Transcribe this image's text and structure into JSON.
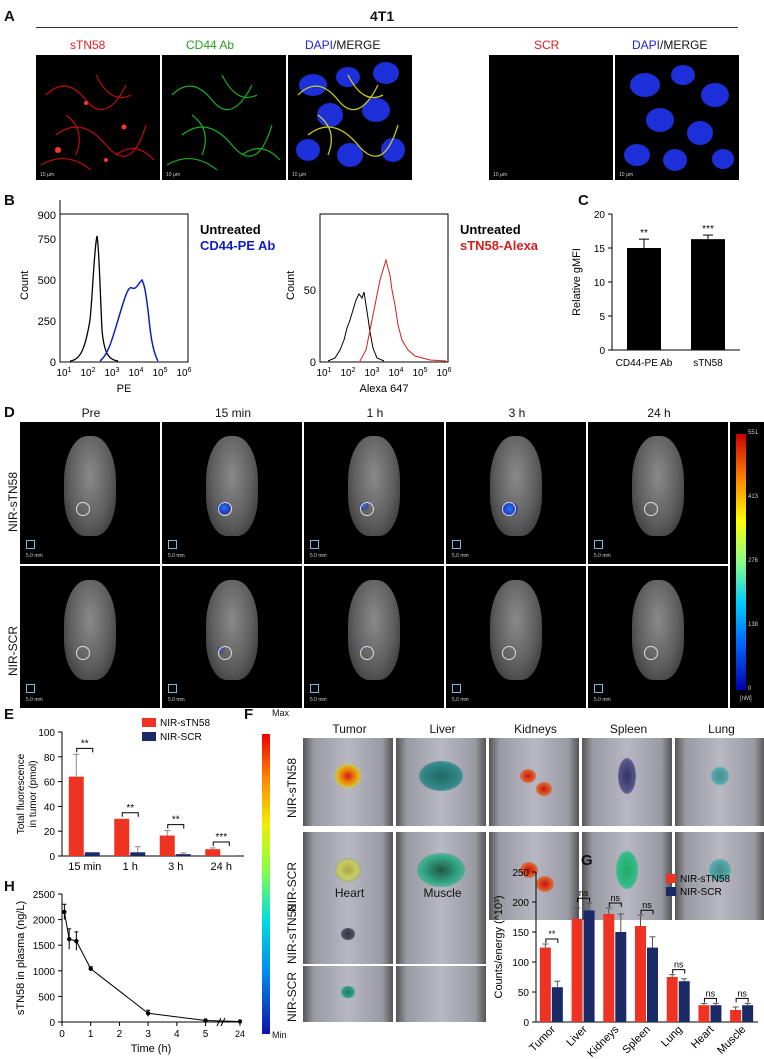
{
  "panels": {
    "A": "A",
    "B": "B",
    "C": "C",
    "D": "D",
    "E": "E",
    "F": "F",
    "G": "G",
    "H": "H"
  },
  "panelA": {
    "cell_line": "4T1",
    "labels": {
      "stn58": "sTN58",
      "cd44": "CD44 Ab",
      "dapi": "DAPI",
      "merge": "/MERGE",
      "scr": "SCR",
      "dapi2": "DAPI",
      "merge2": "/MERGE"
    },
    "scale": "10 µm",
    "colors": {
      "red": "#e02020",
      "green": "#22c022",
      "blue": "#2020e0"
    }
  },
  "panelB": {
    "left": {
      "legend1": "Untreated",
      "legend2": "CD44-PE Ab",
      "xlabel": "PE",
      "ylabel": "Count",
      "yticks": [
        "0",
        "250",
        "500",
        "750",
        "900"
      ],
      "xticks": [
        "10",
        "10",
        "10",
        "10",
        "10",
        "10"
      ],
      "xexp": [
        "1",
        "2",
        "3",
        "4",
        "5",
        "6"
      ]
    },
    "right": {
      "legend1": "Untreated",
      "legend2": "sTN58-Alexa",
      "xlabel": "Alexa 647",
      "ylabel": "Count",
      "yticks": [
        "0",
        "50"
      ],
      "xticks": [
        "10",
        "10",
        "10",
        "10",
        "10",
        "10"
      ],
      "xexp": [
        "1",
        "2",
        "3",
        "4",
        "5",
        "6"
      ]
    }
  },
  "chart_data": [
    {
      "type": "bar",
      "panel": "C",
      "categories": [
        "CD44-PE Ab",
        "sTN58"
      ],
      "values": [
        15.0,
        16.3
      ],
      "errors": [
        1.3,
        0.6
      ],
      "significance": [
        "**",
        "***"
      ],
      "ylabel": "Relative gMFI",
      "ylim": [
        0,
        20
      ],
      "yticks": [
        "0",
        "5",
        "10",
        "15",
        "20"
      ]
    },
    {
      "type": "bar",
      "panel": "E",
      "categories": [
        "15 min",
        "1 h",
        "3 h",
        "24 h"
      ],
      "series": [
        {
          "name": "NIR-sTN58",
          "values": [
            64,
            30,
            16.5,
            5.5
          ],
          "errors": [
            18,
            0,
            4,
            1
          ]
        },
        {
          "name": "NIR-SCR",
          "values": [
            3,
            3,
            1.5,
            0.3
          ],
          "errors": [
            0,
            4.5,
            1,
            0
          ]
        }
      ],
      "significance": [
        "**",
        "**",
        "**",
        "***"
      ],
      "ylabel": "Total fluorescence\nin tumor (pmol)",
      "ylabel_lines": [
        "Total fluorescence",
        "in tumor (pmol)"
      ],
      "ylim": [
        0,
        100
      ],
      "yticks": [
        "0",
        "20",
        "40",
        "60",
        "80",
        "100"
      ],
      "colors": [
        "#ee3322",
        "#1a2a66"
      ]
    },
    {
      "type": "bar",
      "panel": "G",
      "categories": [
        "Tumor",
        "Liver",
        "Kidneys",
        "Spleen",
        "Lung",
        "Heart",
        "Muscle"
      ],
      "series": [
        {
          "name": "NIR-sTN58",
          "values": [
            124,
            172,
            180,
            160,
            75,
            28,
            20
          ],
          "errors": [
            6,
            18,
            10,
            18,
            4,
            3,
            5
          ]
        },
        {
          "name": "NIR-SCR",
          "values": [
            58,
            186,
            150,
            124,
            68,
            28,
            28
          ],
          "errors": [
            10,
            12,
            30,
            18,
            4,
            3,
            3
          ]
        }
      ],
      "significance": [
        "**",
        "ns",
        "ns",
        "ns",
        "ns",
        "ns",
        "ns"
      ],
      "ylabel": "Counts/energy (^10³)",
      "ylim": [
        0,
        250
      ],
      "yticks": [
        "0",
        "50",
        "100",
        "150",
        "200",
        "250"
      ],
      "colors": [
        "#ee3322",
        "#1a2a66"
      ]
    },
    {
      "type": "line",
      "panel": "H",
      "x": [
        0.083,
        0.25,
        0.5,
        1,
        3,
        5,
        24
      ],
      "y": [
        2150,
        1620,
        1580,
        1040,
        170,
        30,
        10
      ],
      "errors": [
        150,
        200,
        180,
        40,
        60,
        10,
        5
      ],
      "xlabel": "Time (h)",
      "ylabel": "sTN58 in plasma (ng/L)",
      "xticks": [
        "0",
        "1",
        "2",
        "3",
        "4",
        "5",
        "24"
      ],
      "yticks": [
        "0",
        "500",
        "1000",
        "1500",
        "2000",
        "2500"
      ],
      "ylim": [
        0,
        2500
      ]
    }
  ],
  "panelD": {
    "timepoints": [
      "Pre",
      "15 min",
      "1 h",
      "3 h",
      "24 h"
    ],
    "rows": [
      "NIR-sTN58",
      "NIR-SCR"
    ],
    "scale": "5.0 mm",
    "colorbar_ticks": [
      "551",
      "413",
      "276",
      "138",
      "0"
    ],
    "colorbar_unit": "[nM]"
  },
  "panelF": {
    "top_organs": [
      "Tumor",
      "Liver",
      "Kidneys",
      "Spleen",
      "Lung"
    ],
    "bottom_organs": [
      "Heart",
      "Muscle"
    ],
    "rows": [
      "NIR-sTN58",
      "NIR-SCR"
    ],
    "colorbar_max": "Max",
    "colorbar_min": "Min"
  }
}
